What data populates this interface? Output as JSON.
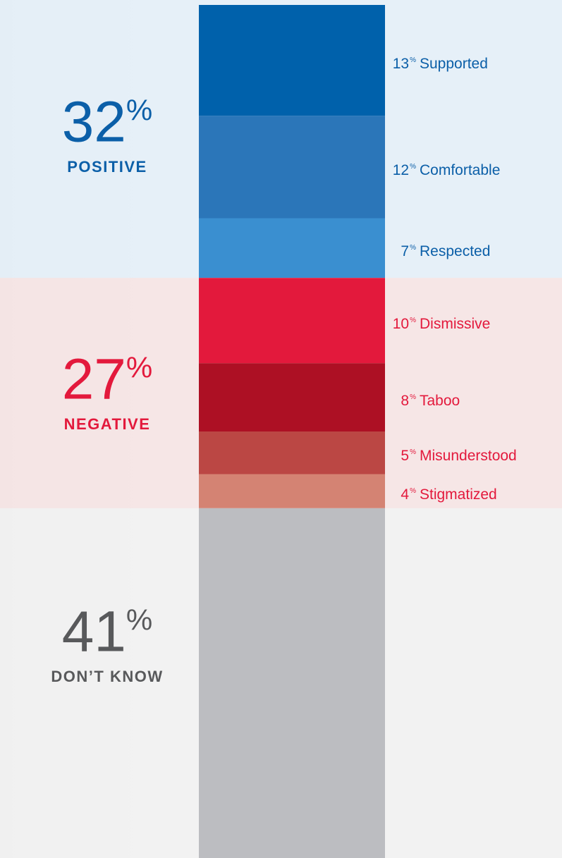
{
  "chart_data": {
    "type": "stacked-bar",
    "groups": [
      {
        "name": "POSITIVE",
        "total": 32,
        "total_label": "32%",
        "color": "#0b5fa8",
        "band": "#e3eef8",
        "segments": [
          {
            "name": "Supported",
            "value": 13,
            "value_label": "13%",
            "color": "#0061ab"
          },
          {
            "name": "Comfortable",
            "value": 12,
            "value_label": "12%",
            "color": "#2b76b9"
          },
          {
            "name": "Respected",
            "value": 7,
            "value_label": "7%",
            "color": "#3a8fd0"
          }
        ]
      },
      {
        "name": "NEGATIVE",
        "total": 27,
        "total_label": "27%",
        "color": "#e3193c",
        "band": "#f6e3e3",
        "segments": [
          {
            "name": "Dismissive",
            "value": 10,
            "value_label": "10%",
            "color": "#e3193c"
          },
          {
            "name": "Taboo",
            "value": 8,
            "value_label": "8%",
            "color": "#ad1024"
          },
          {
            "name": "Misunderstood",
            "value": 5,
            "value_label": "5%",
            "color": "#bb4744"
          },
          {
            "name": "Stigmatized",
            "value": 4,
            "value_label": "4%",
            "color": "#d48373"
          }
        ]
      },
      {
        "name": "DON’T KNOW",
        "total": 41,
        "total_label": "41%",
        "color": "#58595b",
        "bar": "#bcbdc1",
        "band": "#f1f1f1",
        "segments": []
      }
    ]
  }
}
